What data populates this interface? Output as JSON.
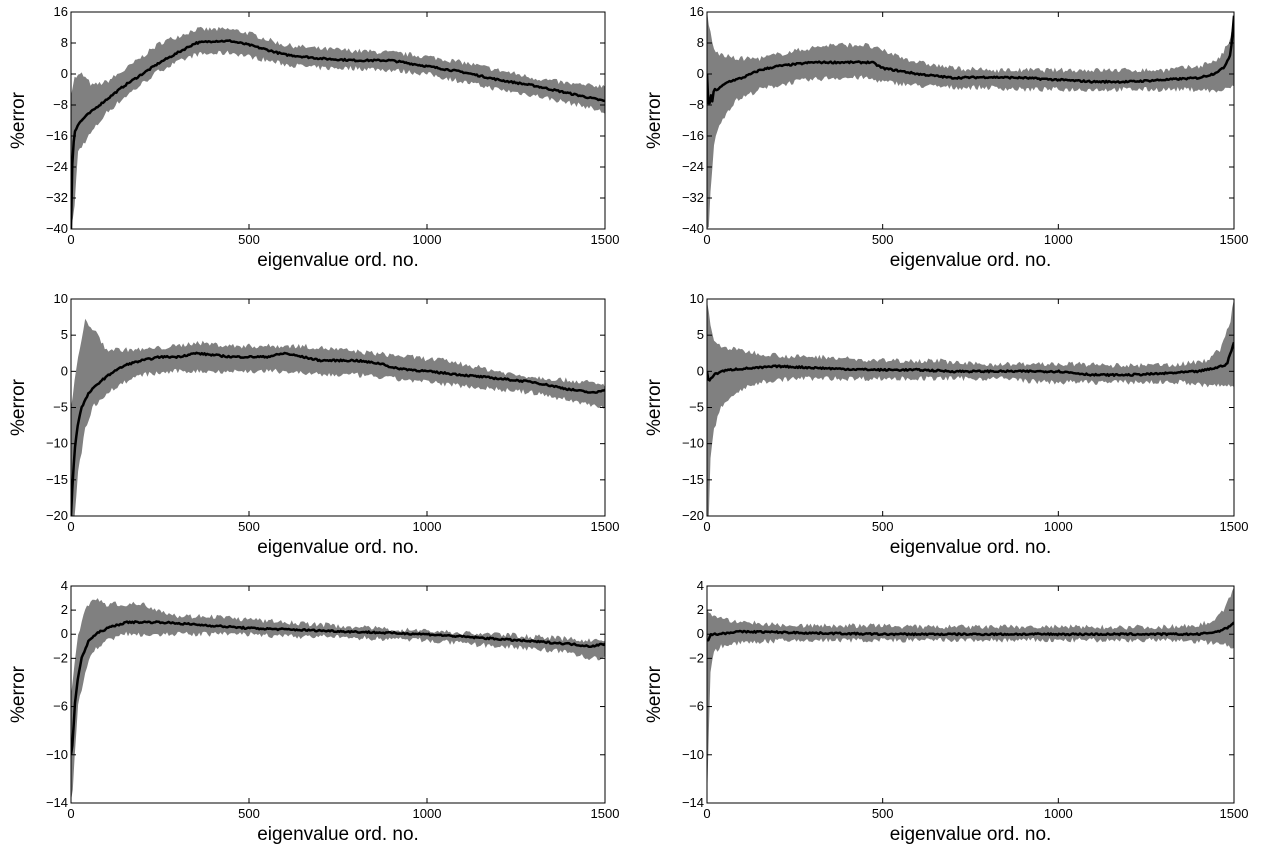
{
  "colors": {
    "band": "#808080",
    "line": "#000000",
    "axes": "#000000"
  },
  "chart_data": [
    {
      "type": "line",
      "title": "",
      "xlabel": "eigenvalue ord. no.",
      "ylabel": "%error",
      "xlim": [
        0,
        1500
      ],
      "ylim": [
        -40,
        16
      ],
      "xticks": [
        0,
        500,
        1000,
        1500
      ],
      "yticks": [
        -40,
        -32,
        -24,
        -16,
        -8,
        0,
        8,
        16
      ],
      "grid": false,
      "series": [
        {
          "role": "mean",
          "x": [
            0,
            2,
            5,
            10,
            20,
            40,
            80,
            150,
            250,
            350,
            400,
            450,
            500,
            600,
            700,
            800,
            900,
            1000,
            1100,
            1200,
            1300,
            1400,
            1500
          ],
          "y": [
            -40,
            -28,
            -20,
            -15,
            -13,
            -11,
            -8,
            -3,
            3,
            8,
            8.5,
            8.5,
            7.5,
            5,
            4,
            3.5,
            3.5,
            2,
            0.5,
            -1.5,
            -3,
            -5,
            -7
          ]
        },
        {
          "role": "envelope-upper",
          "x": [
            0,
            10,
            30,
            60,
            100,
            150,
            250,
            350,
            450,
            500,
            600,
            700,
            800,
            900,
            1000,
            1100,
            1200,
            1300,
            1400,
            1450,
            1500
          ],
          "y": [
            -5,
            -1,
            0,
            -3,
            -2,
            1,
            8,
            11.5,
            11.5,
            10.5,
            7.5,
            6.5,
            6,
            5.5,
            4.5,
            3,
            1,
            -1,
            -2.5,
            -3,
            -3
          ]
        },
        {
          "role": "envelope-lower",
          "x": [
            0,
            10,
            20,
            50,
            100,
            150,
            250,
            350,
            450,
            500,
            600,
            700,
            800,
            900,
            1000,
            1100,
            1200,
            1300,
            1400,
            1450,
            1500
          ],
          "y": [
            -40,
            -34,
            -20,
            -16,
            -10,
            -6,
            1,
            5,
            5.5,
            4.5,
            2.5,
            1.5,
            1.5,
            1,
            0,
            -2,
            -4,
            -5.5,
            -7.5,
            -8.5,
            -10
          ]
        }
      ]
    },
    {
      "type": "line",
      "title": "",
      "xlabel": "eigenvalue ord. no.",
      "ylabel": "%error",
      "xlim": [
        0,
        1500
      ],
      "ylim": [
        -40,
        16
      ],
      "xticks": [
        0,
        500,
        1000,
        1500
      ],
      "yticks": [
        -40,
        -32,
        -24,
        -16,
        -8,
        0,
        8,
        16
      ],
      "grid": false,
      "series": [
        {
          "role": "mean",
          "x": [
            0,
            5,
            10,
            15,
            20,
            30,
            60,
            100,
            150,
            200,
            300,
            400,
            470,
            500,
            600,
            700,
            800,
            900,
            1000,
            1100,
            1200,
            1300,
            1400,
            1440,
            1470,
            1490,
            1500
          ],
          "y": [
            0,
            -10,
            -5,
            -7,
            -4,
            -4,
            -2,
            -1,
            1,
            2,
            3,
            3,
            3,
            1.5,
            0,
            -1,
            -0.8,
            -1,
            -1.5,
            -2,
            -2,
            -1.5,
            -1,
            0,
            1.5,
            5,
            15
          ]
        },
        {
          "role": "envelope-upper",
          "x": [
            0,
            5,
            20,
            40,
            80,
            150,
            250,
            350,
            450,
            500,
            600,
            700,
            800,
            900,
            1000,
            1100,
            1200,
            1300,
            1400,
            1460,
            1490,
            1500
          ],
          "y": [
            16,
            13,
            6,
            5,
            4,
            4,
            6,
            7.5,
            7.5,
            6,
            3,
            1.5,
            1,
            1,
            1,
            1,
            1,
            1,
            2,
            4,
            9,
            16
          ]
        },
        {
          "role": "envelope-lower",
          "x": [
            0,
            5,
            10,
            20,
            40,
            80,
            150,
            250,
            350,
            450,
            500,
            600,
            700,
            800,
            900,
            1000,
            1100,
            1200,
            1300,
            1400,
            1450,
            1480,
            1500
          ],
          "y": [
            -40,
            -40,
            -30,
            -18,
            -12,
            -7,
            -4,
            -2,
            -1,
            -1,
            -2,
            -3,
            -3.5,
            -3.5,
            -4,
            -4,
            -4,
            -4,
            -4,
            -4,
            -4.5,
            -4,
            -3
          ]
        }
      ]
    },
    {
      "type": "line",
      "title": "",
      "xlabel": "eigenvalue ord. no.",
      "ylabel": "%error",
      "xlim": [
        0,
        1500
      ],
      "ylim": [
        -20,
        10
      ],
      "xticks": [
        0,
        500,
        1000,
        1500
      ],
      "yticks": [
        -20,
        -15,
        -10,
        -5,
        0,
        5,
        10
      ],
      "grid": false,
      "series": [
        {
          "role": "mean",
          "x": [
            0,
            5,
            10,
            20,
            30,
            50,
            80,
            120,
            160,
            200,
            250,
            300,
            350,
            450,
            550,
            600,
            700,
            800,
            880,
            900,
            1000,
            1100,
            1200,
            1300,
            1400,
            1470,
            1500
          ],
          "y": [
            -20,
            -15,
            -11,
            -7,
            -5,
            -3,
            -1.5,
            0,
            1,
            1.5,
            2,
            2,
            2.5,
            2,
            2,
            2.5,
            1.5,
            1.5,
            1,
            0.5,
            0,
            -0.5,
            -1,
            -1.5,
            -2.5,
            -3,
            -2.5
          ]
        },
        {
          "role": "envelope-upper",
          "x": [
            0,
            20,
            40,
            60,
            100,
            200,
            300,
            350,
            450,
            550,
            650,
            750,
            850,
            950,
            1050,
            1150,
            1250,
            1350,
            1450,
            1500
          ],
          "y": [
            -5,
            2,
            7,
            6,
            3,
            3,
            3.5,
            4,
            3.5,
            3.5,
            3.5,
            3,
            2.5,
            2,
            1.5,
            0.5,
            -0.5,
            -1,
            -1.5,
            -2
          ]
        },
        {
          "role": "envelope-lower",
          "x": [
            0,
            10,
            20,
            40,
            60,
            100,
            150,
            200,
            300,
            400,
            500,
            600,
            700,
            800,
            900,
            1000,
            1100,
            1200,
            1300,
            1400,
            1450,
            1500
          ],
          "y": [
            -20,
            -20,
            -14,
            -8,
            -5,
            -3,
            -1.5,
            -0.5,
            0,
            0,
            0,
            0,
            -0.5,
            -0.5,
            -1,
            -1.5,
            -2,
            -2.5,
            -3,
            -4,
            -4.5,
            -5
          ]
        }
      ]
    },
    {
      "type": "line",
      "title": "",
      "xlabel": "eigenvalue ord. no.",
      "ylabel": "%error",
      "xlim": [
        0,
        1500
      ],
      "ylim": [
        -20,
        10
      ],
      "xticks": [
        0,
        500,
        1000,
        1500
      ],
      "yticks": [
        -20,
        -15,
        -10,
        -5,
        0,
        5,
        10
      ],
      "grid": false,
      "series": [
        {
          "role": "mean",
          "x": [
            0,
            5,
            10,
            20,
            40,
            80,
            150,
            200,
            300,
            400,
            500,
            600,
            700,
            800,
            900,
            1000,
            1100,
            1200,
            1300,
            1400,
            1450,
            1480,
            1500
          ],
          "y": [
            0,
            -1.5,
            -1,
            -0.5,
            0,
            0.3,
            0.5,
            0.7,
            0.5,
            0.3,
            0.2,
            0.2,
            0,
            0,
            0,
            0,
            -0.5,
            -0.5,
            -0.3,
            0,
            0.5,
            1,
            4
          ]
        },
        {
          "role": "envelope-upper",
          "x": [
            0,
            5,
            20,
            40,
            80,
            150,
            250,
            350,
            450,
            550,
            650,
            750,
            850,
            950,
            1050,
            1150,
            1250,
            1350,
            1420,
            1460,
            1490,
            1500
          ],
          "y": [
            10,
            8,
            4,
            3.5,
            3,
            2.5,
            2,
            2,
            1.5,
            1.5,
            1.5,
            1,
            1,
            1,
            1,
            0.8,
            0.8,
            1,
            1.5,
            3,
            7,
            10
          ]
        },
        {
          "role": "envelope-lower",
          "x": [
            0,
            5,
            10,
            20,
            40,
            80,
            150,
            250,
            350,
            450,
            550,
            650,
            750,
            850,
            950,
            1050,
            1150,
            1250,
            1350,
            1420,
            1460,
            1490,
            1500
          ],
          "y": [
            -20,
            -20,
            -12,
            -8,
            -5,
            -3,
            -1.5,
            -1,
            -1,
            -1,
            -1,
            -1,
            -1,
            -1,
            -1.5,
            -1.5,
            -1.5,
            -1.5,
            -1.5,
            -2,
            -2,
            -2,
            -2
          ]
        }
      ]
    },
    {
      "type": "line",
      "title": "",
      "xlabel": "eigenvalue ord. no.",
      "ylabel": "%error",
      "xlim": [
        0,
        1500
      ],
      "ylim": [
        -14,
        4
      ],
      "xticks": [
        0,
        500,
        1000,
        1500
      ],
      "yticks": [
        -14,
        -10,
        -6,
        -2,
        0,
        2,
        4
      ],
      "grid": false,
      "series": [
        {
          "role": "mean",
          "x": [
            0,
            5,
            10,
            20,
            30,
            50,
            80,
            120,
            160,
            200,
            250,
            300,
            350,
            400,
            500,
            600,
            700,
            800,
            900,
            1000,
            1100,
            1200,
            1300,
            1400,
            1460,
            1500
          ],
          "y": [
            -10,
            -9,
            -6,
            -3.5,
            -2,
            -0.5,
            0.2,
            0.7,
            1,
            1,
            1,
            0.9,
            0.8,
            0.7,
            0.5,
            0.4,
            0.3,
            0.2,
            0.1,
            0,
            -0.2,
            -0.4,
            -0.6,
            -0.8,
            -1,
            -0.8
          ]
        },
        {
          "role": "envelope-upper",
          "x": [
            0,
            20,
            40,
            60,
            100,
            150,
            200,
            250,
            300,
            350,
            400,
            500,
            600,
            700,
            800,
            900,
            1000,
            1100,
            1200,
            1300,
            1400,
            1450,
            1500
          ],
          "y": [
            -5,
            0,
            2,
            3,
            2.5,
            2.5,
            2.5,
            2,
            1.5,
            1.5,
            1.5,
            1.2,
            1,
            0.8,
            0.6,
            0.4,
            0.3,
            0.1,
            0,
            -0.2,
            -0.4,
            -0.5,
            -0.5
          ]
        },
        {
          "role": "envelope-lower",
          "x": [
            0,
            5,
            10,
            20,
            40,
            60,
            100,
            150,
            200,
            300,
            400,
            500,
            600,
            700,
            800,
            900,
            1000,
            1100,
            1200,
            1300,
            1400,
            1450,
            1500
          ],
          "y": [
            -14,
            -13,
            -10,
            -6,
            -3,
            -1.5,
            -0.5,
            0,
            0,
            0,
            0,
            0,
            -0.2,
            -0.2,
            -0.3,
            -0.4,
            -0.5,
            -0.8,
            -1,
            -1.2,
            -1.5,
            -2,
            -2
          ]
        }
      ]
    },
    {
      "type": "line",
      "title": "",
      "xlabel": "eigenvalue ord. no.",
      "ylabel": "%error",
      "xlim": [
        0,
        1500
      ],
      "ylim": [
        -14,
        4
      ],
      "xticks": [
        0,
        500,
        1000,
        1500
      ],
      "yticks": [
        -14,
        -10,
        -6,
        -2,
        0,
        2,
        4
      ],
      "grid": false,
      "series": [
        {
          "role": "mean",
          "x": [
            0,
            5,
            10,
            30,
            80,
            150,
            300,
            500,
            700,
            900,
            1100,
            1300,
            1400,
            1450,
            1480,
            1500
          ],
          "y": [
            -0.5,
            -0.5,
            0,
            0,
            0.2,
            0.2,
            0.1,
            0,
            0,
            0,
            0,
            0,
            0,
            0.2,
            0.5,
            1
          ]
        },
        {
          "role": "envelope-upper",
          "x": [
            0,
            20,
            50,
            100,
            200,
            300,
            400,
            500,
            600,
            700,
            800,
            900,
            1000,
            1100,
            1200,
            1300,
            1400,
            1450,
            1480,
            1500
          ],
          "y": [
            2,
            1.5,
            1.2,
            1,
            0.8,
            0.7,
            0.7,
            0.7,
            0.6,
            0.6,
            0.6,
            0.6,
            0.6,
            0.6,
            0.6,
            0.6,
            0.8,
            1.2,
            2.5,
            4
          ]
        },
        {
          "role": "envelope-lower",
          "x": [
            0,
            5,
            10,
            20,
            40,
            80,
            150,
            300,
            500,
            700,
            900,
            1100,
            1300,
            1400,
            1460,
            1500
          ],
          "y": [
            -14,
            -8,
            -3,
            -1.5,
            -1,
            -0.8,
            -0.6,
            -0.5,
            -0.5,
            -0.5,
            -0.5,
            -0.5,
            -0.5,
            -0.6,
            -0.8,
            -1
          ]
        }
      ]
    }
  ]
}
